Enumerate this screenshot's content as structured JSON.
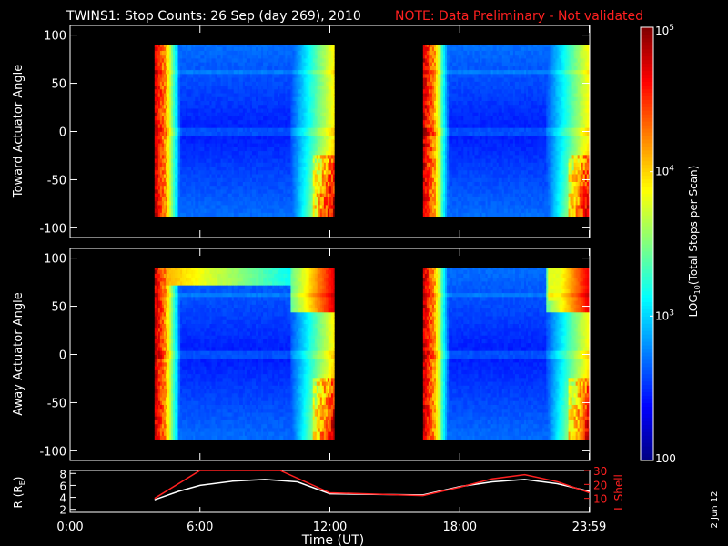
{
  "title": "TWINS1: Stop Counts: 26 Sep (day 269), 2010",
  "note": "NOTE: Data Preliminary - Not validated",
  "colors": {
    "background": "#000000",
    "axes": "#ffffff",
    "note": "#ff2020",
    "r_line": "#ffffff",
    "lshell_line": "#ff2020"
  },
  "colorbar": {
    "label_html": "LOG10(Total Stops per Scan)",
    "label_parts": [
      "LOG",
      "10",
      "(Total Stops per Scan)"
    ],
    "ticks": [
      {
        "v": 100,
        "label": "100"
      },
      {
        "v": 1000,
        "label": "10",
        "sup": "3"
      },
      {
        "v": 10000,
        "label": "10",
        "sup": "4"
      },
      {
        "v": 100000,
        "label": "10",
        "sup": "5"
      }
    ],
    "range": [
      100,
      100000
    ],
    "scale": "log",
    "palette": "jet"
  },
  "x_axis": {
    "label": "Time (UT)",
    "range": [
      0,
      24
    ],
    "ticks": [
      {
        "v": 0,
        "label": "0:00"
      },
      {
        "v": 6,
        "label": "6:00"
      },
      {
        "v": 12,
        "label": "12:00"
      },
      {
        "v": 18,
        "label": "18:00"
      },
      {
        "v": 23.98,
        "label": "23:59"
      }
    ]
  },
  "date_stamp": "2 Jun 12",
  "chart_data": [
    {
      "type": "heatmap",
      "ylabel": "Toward Actuator Angle",
      "ylim": [
        -110,
        110
      ],
      "yticks": [
        100,
        50,
        0,
        -50,
        -100
      ],
      "data_time_ranges": [
        [
          3.9,
          12.2
        ],
        [
          16.3,
          24.0
        ]
      ],
      "data_angle_range": [
        -88,
        90
      ],
      "description_values": "log10 stop counts ~2.2-3.0 (blue) mid-window, ~4.0-5.0 (yellow-red) near window edges"
    },
    {
      "type": "heatmap",
      "ylabel": "Away Actuator Angle",
      "ylim": [
        -110,
        110
      ],
      "yticks": [
        100,
        50,
        0,
        -50,
        -100
      ],
      "data_time_ranges": [
        [
          3.9,
          12.2
        ],
        [
          16.3,
          24.0
        ]
      ],
      "data_angle_range": [
        -88,
        90
      ]
    },
    {
      "type": "line",
      "ylabel_left": "R (RE)",
      "ylabel_left_parts": [
        "R (R",
        "E",
        ")"
      ],
      "ylabel_right": "L Shell",
      "yticks_left": [
        2,
        4,
        6,
        8
      ],
      "ylim_left": [
        1.5,
        8.5
      ],
      "yticks_right": [
        10,
        20,
        30
      ],
      "ylim_right": [
        0,
        30
      ],
      "series": [
        {
          "name": "R",
          "axis": "left",
          "x": [
            3.9,
            5.0,
            6.0,
            7.5,
            9.0,
            10.5,
            12.0,
            14.0,
            16.3,
            18.0,
            19.5,
            21.0,
            22.5,
            24.0
          ],
          "y": [
            3.6,
            5.0,
            6.0,
            6.7,
            7.0,
            6.6,
            4.6,
            4.5,
            4.4,
            5.8,
            6.6,
            7.0,
            6.3,
            5.0
          ]
        },
        {
          "name": "L Shell",
          "axis": "right",
          "x": [
            3.9,
            6.0,
            9.7,
            12.0,
            16.3,
            18.0,
            19.5,
            21.0,
            22.5,
            24.0
          ],
          "y": [
            10.0,
            30.0,
            30.0,
            14.0,
            12.0,
            18.0,
            24.0,
            27.0,
            22.0,
            14.0
          ]
        }
      ]
    }
  ]
}
